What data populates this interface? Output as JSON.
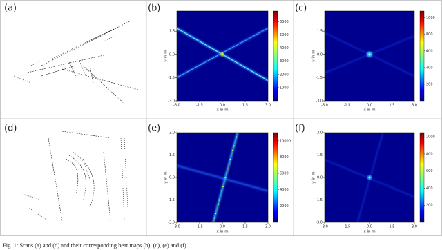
{
  "panels": [
    {
      "label": "(a)"
    },
    {
      "label": "(b)",
      "xlabel": "x in m",
      "ylabel": "y in m",
      "xlim": [
        -3,
        3
      ],
      "ylim": [
        -3,
        2.8
      ],
      "xticks": [
        {
          "value": -3,
          "label": "-3.0"
        },
        -1.5,
        {
          "value": 0,
          "label": "0.0"
        },
        1.5,
        {
          "value": 3,
          "label": "3.0"
        }
      ],
      "yticks": [
        {
          "value": -3,
          "label": "-3.0"
        },
        -1.5,
        {
          "value": 0,
          "label": "0.0"
        },
        1.5
      ],
      "clim": [
        0,
        6800
      ],
      "cticks": [
        1000,
        2000,
        3000,
        4000,
        5000,
        6000
      ]
    },
    {
      "label": "(c)",
      "xlabel": "x in m",
      "ylabel": "y in m",
      "xlim": [
        -3,
        3
      ],
      "ylim": [
        -3,
        2.8
      ],
      "xticks": [
        {
          "value": -3,
          "label": "-3.0"
        },
        -1.5,
        {
          "value": 0,
          "label": "0.0"
        },
        1.5,
        {
          "value": 3,
          "label": "3.0"
        }
      ],
      "yticks": [
        {
          "value": -3,
          "label": "-3.0"
        },
        -1.5,
        {
          "value": 0,
          "label": "0.0"
        },
        1.5
      ],
      "clim": [
        0,
        1080
      ],
      "cticks": [
        200,
        400,
        600,
        800,
        1000
      ]
    },
    {
      "label": "(d)"
    },
    {
      "label": "(e)",
      "xlabel": "x in m",
      "ylabel": "y in m",
      "xlim": [
        -3,
        3
      ],
      "ylim": [
        -3,
        3
      ],
      "xticks": [
        {
          "value": -3,
          "label": "-3.0"
        },
        -1.5,
        {
          "value": 0,
          "label": "0.0"
        },
        1.5,
        {
          "value": 3,
          "label": "3.0"
        }
      ],
      "yticks": [
        {
          "value": -3,
          "label": "-3.0"
        },
        -1.5,
        {
          "value": 0,
          "label": "0.0"
        },
        1.5,
        {
          "value": 3,
          "label": "3.0"
        }
      ],
      "clim": [
        0,
        11000
      ],
      "cticks": [
        2000,
        4000,
        6000,
        8000,
        10000
      ]
    },
    {
      "label": "(f)",
      "xlabel": "x in m",
      "ylabel": "y in m",
      "xlim": [
        -3,
        3
      ],
      "ylim": [
        -3,
        3
      ],
      "xticks": [
        {
          "value": -3,
          "label": "-3.0"
        },
        -1.5,
        {
          "value": 0,
          "label": "0.0"
        },
        1.5,
        {
          "value": 3,
          "label": "3.0"
        }
      ],
      "yticks": [
        {
          "value": -3,
          "label": "-3.0"
        },
        -1.5,
        {
          "value": 0,
          "label": "0.0"
        },
        1.5,
        {
          "value": 3,
          "label": "3.0"
        }
      ],
      "clim": [
        0,
        1050
      ],
      "cticks": [
        200,
        400,
        600,
        800,
        1000
      ]
    }
  ],
  "caption": "Fig. 1: Scans (a) and (d) and their corresponding heat maps (b), (c), (e) and (f)."
}
